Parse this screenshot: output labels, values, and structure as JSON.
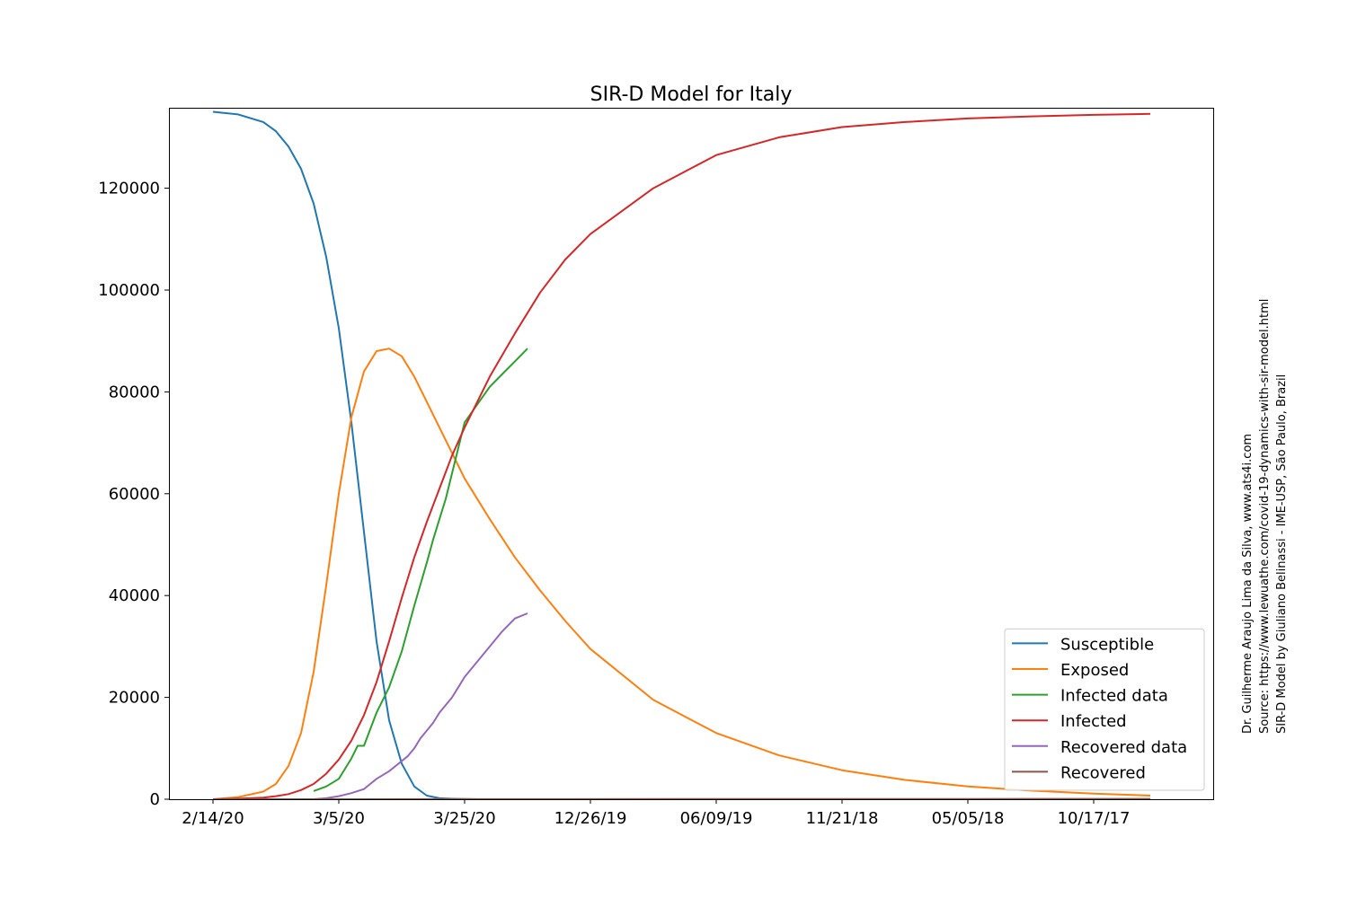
{
  "chart_data": {
    "type": "line",
    "title": "SIR-D Model for Italy",
    "xlabel": "",
    "ylabel": "",
    "xlim": [
      -3.5,
      79.5
    ],
    "ylim": [
      0,
      135800
    ],
    "x_tick_positions": [
      0,
      10,
      20,
      30,
      40,
      50,
      60,
      70
    ],
    "x_tick_labels": [
      "2/14/20",
      "3/5/20",
      "3/25/20",
      "12/26/19",
      "06/09/19",
      "11/21/18",
      "05/05/18",
      "10/17/17"
    ],
    "y_ticks": [
      0,
      20000,
      40000,
      60000,
      80000,
      100000,
      120000
    ],
    "y_tick_labels": [
      "0",
      "20000",
      "40000",
      "60000",
      "80000",
      "100000",
      "120000"
    ],
    "grid": false,
    "legend_position": "lower-right",
    "series": [
      {
        "name": "Susceptible",
        "color": "#1f77b4",
        "x": [
          0,
          2,
          4,
          5,
          6,
          7,
          8,
          9,
          10,
          11,
          12,
          13,
          14,
          15,
          16,
          17,
          18,
          19,
          20,
          21,
          25,
          30,
          40,
          50,
          60,
          70,
          74.5
        ],
        "y": [
          135000,
          134500,
          133000,
          131200,
          128200,
          123800,
          117000,
          106500,
          92500,
          74000,
          52500,
          31000,
          15500,
          7000,
          2500,
          700,
          200,
          80,
          30,
          0,
          0,
          0,
          0,
          0,
          0,
          0,
          0
        ]
      },
      {
        "name": "Exposed",
        "color": "#ff7f0e",
        "x": [
          0,
          2,
          4,
          5,
          6,
          7,
          8,
          9,
          10,
          11,
          12,
          13,
          14,
          15,
          16,
          17,
          18,
          19,
          20,
          22,
          24,
          26,
          28,
          30,
          35,
          40,
          45,
          50,
          55,
          60,
          65,
          70,
          74.5
        ],
        "y": [
          0,
          400,
          1500,
          3000,
          6500,
          13000,
          25000,
          42000,
          60000,
          75000,
          84000,
          88000,
          88500,
          87000,
          83000,
          78000,
          73000,
          68000,
          63000,
          55000,
          47500,
          41000,
          35000,
          29500,
          19500,
          13000,
          8600,
          5700,
          3800,
          2500,
          1700,
          1100,
          700
        ]
      },
      {
        "name": "Infected data",
        "color": "#2ca02c",
        "x": [
          8,
          9,
          10,
          10.5,
          11,
          11.5,
          12,
          13,
          14,
          15,
          16,
          17,
          17.5,
          18,
          18.5,
          19,
          20,
          21,
          22,
          23,
          24,
          25
        ],
        "y": [
          1600,
          2500,
          4000,
          6000,
          8000,
          10500,
          10500,
          17000,
          22000,
          29000,
          38000,
          46500,
          51000,
          55000,
          59000,
          64000,
          74000,
          77500,
          81000,
          83500,
          86000,
          88500
        ]
      },
      {
        "name": "Infected",
        "color": "#d62728",
        "x": [
          0,
          2,
          4,
          5,
          6,
          7,
          8,
          9,
          10,
          11,
          12,
          13,
          14,
          15,
          16,
          17,
          18,
          19,
          20,
          22,
          24,
          26,
          28,
          30,
          35,
          40,
          45,
          50,
          55,
          60,
          65,
          70,
          74.5
        ],
        "y": [
          0,
          100,
          300,
          600,
          1000,
          1800,
          3000,
          5000,
          7800,
          11500,
          16500,
          23000,
          31000,
          39500,
          47500,
          54500,
          61000,
          67500,
          73000,
          83000,
          91500,
          99500,
          106000,
          111000,
          120000,
          126500,
          130000,
          132000,
          133000,
          133700,
          134100,
          134400,
          134600
        ]
      },
      {
        "name": "Recovered data",
        "color": "#9467bd",
        "x": [
          8,
          9,
          10,
          11,
          12,
          12.5,
          13,
          14,
          15,
          15.5,
          16,
          16.5,
          17,
          17.5,
          18,
          18.5,
          19,
          19.5,
          20,
          21,
          22,
          23,
          24,
          25
        ],
        "y": [
          0,
          200,
          600,
          1200,
          2000,
          3000,
          4000,
          5500,
          7500,
          8500,
          10000,
          12000,
          13500,
          15000,
          17000,
          18500,
          20000,
          22000,
          24000,
          27000,
          30000,
          33000,
          35500,
          36500
        ]
      },
      {
        "name": "Recovered",
        "color": "#8c564b",
        "x": [
          0,
          20,
          40,
          60,
          74.5
        ],
        "y": [
          0,
          20,
          40,
          60,
          70
        ]
      }
    ]
  },
  "credits": {
    "line1": "Dr. Guilherme Araujo Lima da Silva, www.ats4i.com",
    "line2": "Source: https://www.lewuathe.com/covid-19-dynamics-with-sir-model.html",
    "line3": "SIR-D Model by Giuliano Belinassi - IME-USP, São Paulo, Brazil"
  }
}
